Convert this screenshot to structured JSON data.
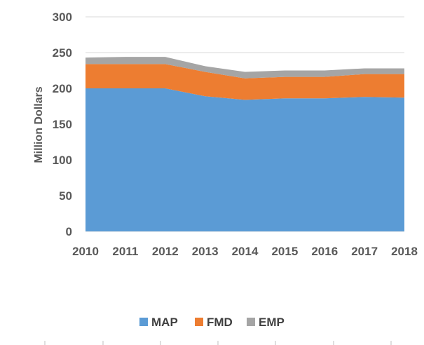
{
  "chart_data": {
    "type": "area",
    "stacked": true,
    "x": [
      "2010",
      "2011",
      "2012",
      "2013",
      "2014",
      "2015",
      "2016",
      "2017",
      "2018"
    ],
    "series": [
      {
        "name": "MAP",
        "color": "#5B9BD5",
        "values": [
          200,
          200,
          200,
          189,
          184,
          186,
          186,
          188,
          187
        ]
      },
      {
        "name": "FMD",
        "color": "#ED7D31",
        "values": [
          34,
          34,
          34,
          34,
          30,
          30,
          30,
          32,
          33
        ]
      },
      {
        "name": "EMP",
        "color": "#A5A5A5",
        "values": [
          9,
          10,
          10,
          8,
          9,
          9,
          9,
          8,
          8
        ]
      }
    ],
    "ylabel": "Million Dollars",
    "xlabel": "",
    "ylim": [
      0,
      300
    ],
    "yticks": [
      "0",
      "50",
      "100",
      "150",
      "200",
      "250",
      "300"
    ],
    "grid": true,
    "legend_position": "bottom",
    "gridline_color": "#D9D9D9"
  }
}
